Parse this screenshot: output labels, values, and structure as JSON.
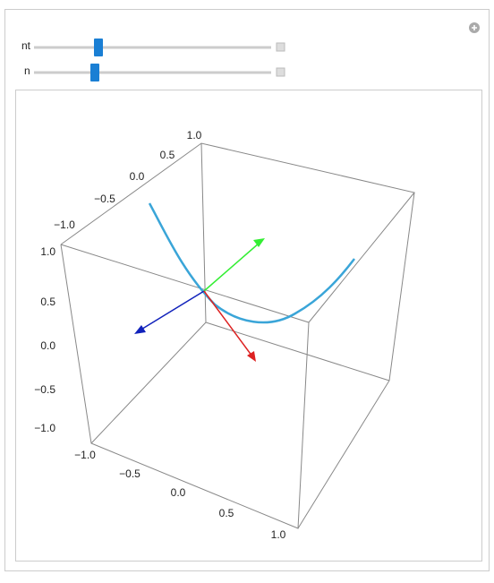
{
  "controls": [
    {
      "label": "nt"
    },
    {
      "label": "n"
    }
  ],
  "plot": {
    "axis_ticks": {
      "vertical": [
        "1.0",
        "0.5",
        "0.0",
        "−0.5",
        "−1.0"
      ],
      "front": [
        "−1.0",
        "−0.5",
        "0.0",
        "0.5",
        "1.0"
      ],
      "top": [
        "1.0",
        "0.5",
        "0.0",
        "−0.5",
        "−1.0"
      ]
    }
  }
}
